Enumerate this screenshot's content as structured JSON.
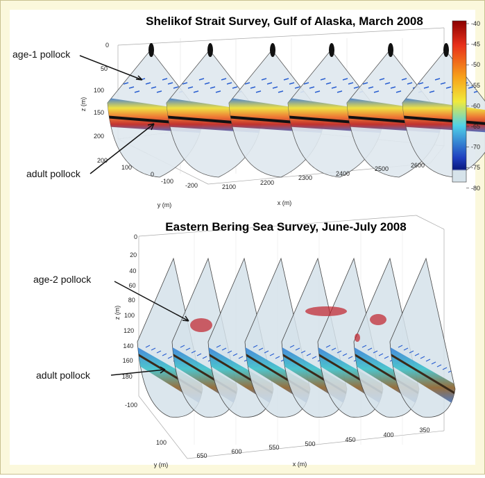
{
  "panels": [
    {
      "title": "Shelikof Strait Survey, Gulf of Alaska, March 2008",
      "annotations": [
        "age-1 pollock",
        "adult pollock"
      ],
      "z_axis": {
        "label": "z (m)",
        "ticks": [
          "0",
          "50",
          "100",
          "150",
          "200"
        ]
      },
      "y_axis": {
        "label": "y (m)",
        "ticks": [
          "200",
          "100",
          "0",
          "-100",
          "-200"
        ]
      },
      "x_axis": {
        "label": "x (m)",
        "ticks": [
          "2100",
          "2200",
          "2300",
          "2400",
          "2500",
          "2600"
        ]
      },
      "colorbar": {
        "ticks": [
          "-40",
          "-45",
          "-50",
          "-55",
          "-60",
          "-65",
          "-70",
          "-75",
          "-80"
        ]
      }
    },
    {
      "title": "Eastern Bering Sea Survey, June-July 2008",
      "annotations": [
        "age-2 pollock",
        "adult pollock"
      ],
      "z_axis": {
        "label": "z (m)",
        "ticks": [
          "0",
          "20",
          "40",
          "60",
          "80",
          "100",
          "120",
          "140",
          "160",
          "180"
        ]
      },
      "y_axis": {
        "label": "y (m)",
        "ticks": [
          "-100",
          "100"
        ]
      },
      "x_axis": {
        "label": "x (m)",
        "ticks": [
          "650",
          "600",
          "550",
          "500",
          "450",
          "400",
          "350"
        ]
      }
    }
  ]
}
